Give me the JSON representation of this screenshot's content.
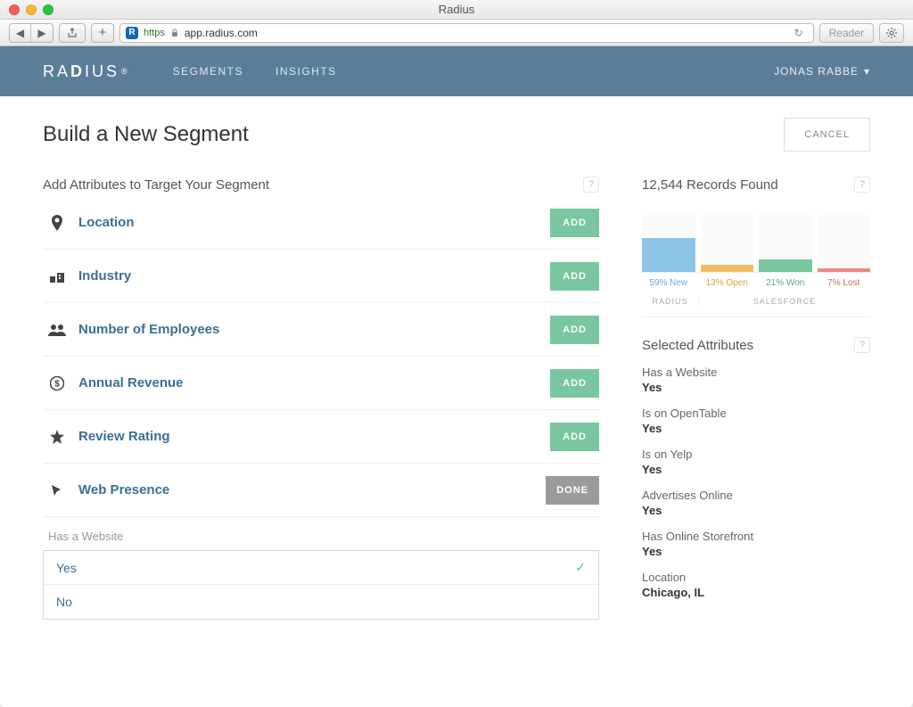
{
  "window": {
    "title": "Radius",
    "url": "app.radius.com",
    "protocol": "https"
  },
  "header": {
    "logo_prefix": "RA",
    "logo_accent": "D",
    "logo_suffix": "IUS",
    "nav": [
      "SEGMENTS",
      "INSIGHTS"
    ],
    "user": "JONAS RABBE"
  },
  "page": {
    "title": "Build a New Segment",
    "cancel": "CANCEL"
  },
  "attributes": {
    "heading": "Add Attributes to Target Your Segment",
    "addLabel": "ADD",
    "doneLabel": "DONE",
    "rows": [
      {
        "label": "Location",
        "icon": "pin"
      },
      {
        "label": "Industry",
        "icon": "building"
      },
      {
        "label": "Number of Employees",
        "icon": "people"
      },
      {
        "label": "Annual Revenue",
        "icon": "dollar"
      },
      {
        "label": "Review Rating",
        "icon": "star"
      },
      {
        "label": "Web Presence",
        "icon": "cursor",
        "expanded": true
      }
    ],
    "subLabel": "Has a Website",
    "choices": [
      {
        "label": "Yes",
        "selected": true
      },
      {
        "label": "No",
        "selected": false
      }
    ]
  },
  "results": {
    "heading": "12,544 Records Found",
    "chart": {
      "barHeight": 64,
      "background": "#fafafa",
      "bars": [
        {
          "label": "59% New",
          "height": 38,
          "color": "#8ec4e6",
          "labelColor": "#6ba9d4"
        },
        {
          "label": "13% Open",
          "height": 8,
          "color": "#f0be62",
          "labelColor": "#d9a53f"
        },
        {
          "label": "21% Won",
          "height": 14,
          "color": "#7ac6a0",
          "labelColor": "#58a97f"
        },
        {
          "label": "7% Lost",
          "height": 4,
          "color": "#e98a80",
          "labelColor": "#d26a5f"
        }
      ],
      "sources": {
        "left": "RADIUS",
        "right": "SALESFORCE"
      }
    }
  },
  "selected": {
    "heading": "Selected Attributes",
    "items": [
      {
        "label": "Has a Website",
        "value": "Yes"
      },
      {
        "label": "Is on OpenTable",
        "value": "Yes"
      },
      {
        "label": "Is on Yelp",
        "value": "Yes"
      },
      {
        "label": "Advertises Online",
        "value": "Yes"
      },
      {
        "label": "Has Online Storefront",
        "value": "Yes"
      },
      {
        "label": "Location",
        "value": "Chicago, IL"
      }
    ]
  },
  "colors": {
    "headerBg": "#5a7d98",
    "link": "#3c6f94",
    "addBtn": "#7ac6a0",
    "doneBtn": "#9b9b9b"
  }
}
